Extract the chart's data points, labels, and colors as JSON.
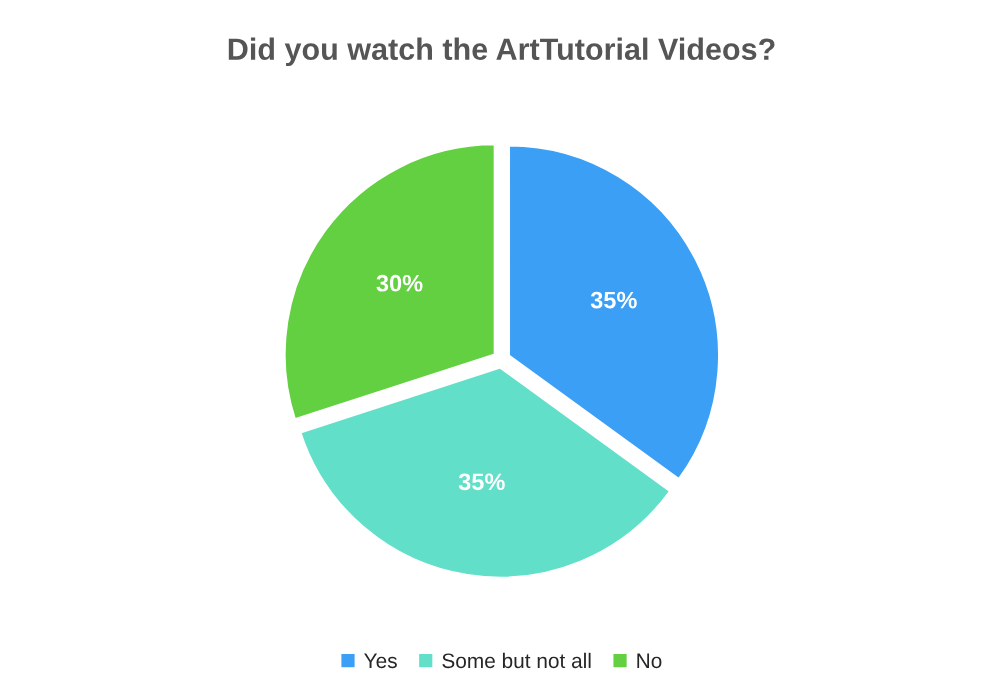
{
  "chart_data": {
    "type": "pie",
    "title": "Did you watch the ArtTutorial Videos?",
    "categories": [
      "Yes",
      "Some but not all",
      "No"
    ],
    "values": [
      35,
      35,
      30
    ],
    "colors": [
      "#3a9ff5",
      "#62dfc8",
      "#62d040"
    ],
    "value_labels": [
      "35%",
      "35%",
      "30%"
    ],
    "legend": "bottom"
  }
}
